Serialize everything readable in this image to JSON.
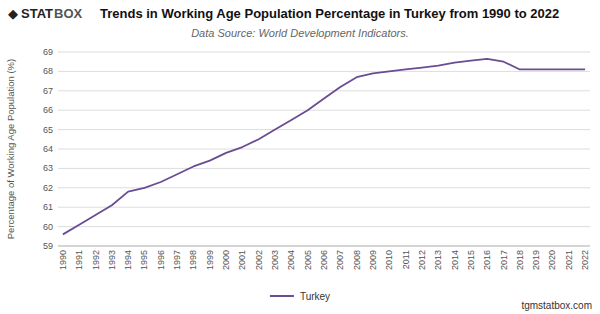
{
  "chart_data": {
    "type": "line",
    "title": "Trends in Working Age Population Percentage in Turkey from 1990 to 2022",
    "subtitle": "Data Source: World Development Indicators.",
    "y_label": "Percentage of Working Age Population (%)",
    "annotations": [
      "◆",
      "STAT",
      "BOX",
      "tgmstatbox.com"
    ],
    "x": [
      1990,
      1991,
      1992,
      1993,
      1994,
      1995,
      1996,
      1997,
      1998,
      1999,
      2000,
      2001,
      2002,
      2003,
      2004,
      2005,
      2006,
      2007,
      2008,
      2009,
      2010,
      2011,
      2012,
      2013,
      2014,
      2015,
      2016,
      2017,
      2018,
      2019,
      2020,
      2021,
      2022
    ],
    "series": [
      {
        "name": "Turkey",
        "color": "#6a4c93",
        "values": [
          59.6,
          60.1,
          60.6,
          61.1,
          61.8,
          62.0,
          62.3,
          62.7,
          63.1,
          63.4,
          63.8,
          64.1,
          64.5,
          65.0,
          65.5,
          66.0,
          66.6,
          67.2,
          67.7,
          67.9,
          68.0,
          68.1,
          68.2,
          68.3,
          68.45,
          68.55,
          68.65,
          68.5,
          68.1,
          68.1,
          68.1,
          68.1,
          68.1
        ]
      }
    ],
    "xlim": [
      1989.7,
      2022.3
    ],
    "xticks": [
      1990,
      1991,
      1992,
      1993,
      1994,
      1995,
      1996,
      1997,
      1998,
      1999,
      2000,
      2001,
      2002,
      2003,
      2004,
      2005,
      2006,
      2007,
      2008,
      2009,
      2010,
      2011,
      2012,
      2013,
      2014,
      2015,
      2016,
      2017,
      2018,
      2019,
      2020,
      2021,
      2022
    ],
    "ylim": [
      59,
      69
    ],
    "yticks": [
      59,
      60,
      61,
      62,
      63,
      64,
      65,
      66,
      67,
      68,
      69
    ],
    "grid": true,
    "legend": "bottom"
  }
}
